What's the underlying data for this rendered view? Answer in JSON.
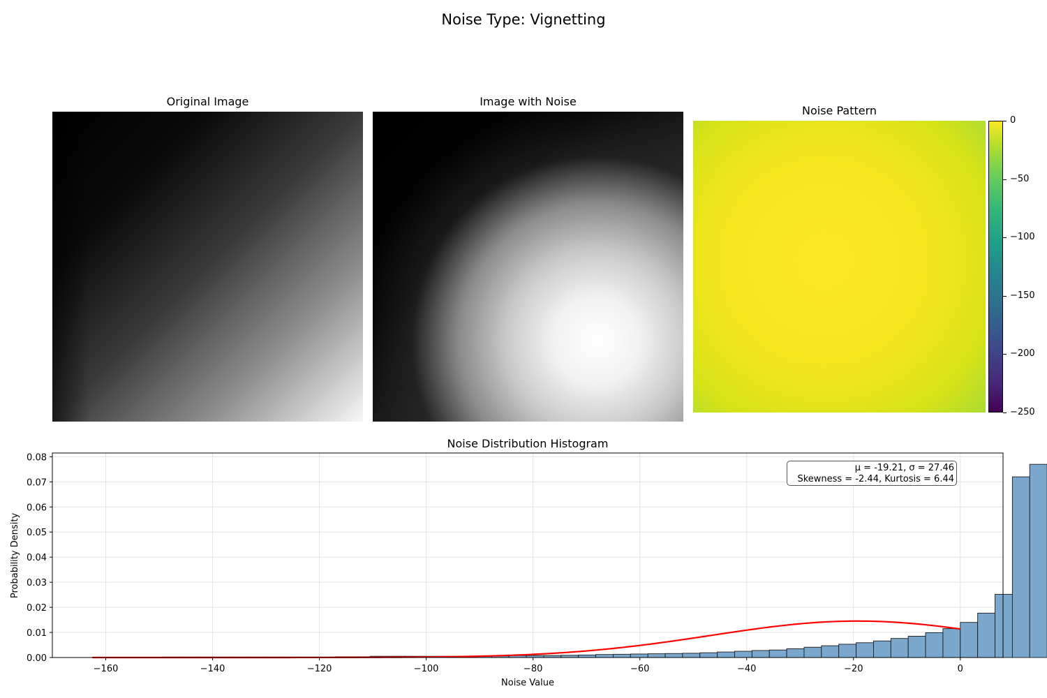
{
  "figure": {
    "title": "Noise Type: Vignetting"
  },
  "panels": {
    "original": {
      "title": "Original Image"
    },
    "noisy": {
      "title": "Image with Noise"
    },
    "pattern": {
      "title": "Noise Pattern",
      "colormap": "viridis",
      "colorbar_ticks": [
        "0",
        "−50",
        "−100",
        "−150",
        "−200",
        "−250"
      ],
      "colorbar_range": [
        -250,
        0
      ]
    }
  },
  "stats": {
    "line1": "μ = -19.21, σ = 27.46",
    "line2": "Skewness = -2.44, Kurtosis = 6.44"
  },
  "chart_data": {
    "type": "bar",
    "title": "Noise Distribution Histogram",
    "xlabel": "Noise Value",
    "ylabel": "Probability Density",
    "xlim": [
      -170,
      8
    ],
    "ylim": [
      0,
      0.0815
    ],
    "grid": true,
    "xticks": [
      -160,
      -140,
      -120,
      -100,
      -80,
      -60,
      -40,
      -20,
      0
    ],
    "xtick_labels": [
      "−160",
      "−140",
      "−120",
      "−100",
      "−80",
      "−60",
      "−40",
      "−20",
      "0"
    ],
    "yticks": [
      0,
      0.01,
      0.02,
      0.03,
      0.04,
      0.05,
      0.06,
      0.07,
      0.08
    ],
    "ytick_labels": [
      "0.00",
      "0.01",
      "0.02",
      "0.03",
      "0.04",
      "0.05",
      "0.06",
      "0.07",
      "0.08"
    ],
    "bin_width": 3.25,
    "bin_start": -162.5,
    "values": [
      0.0001,
      0.0001,
      0.0001,
      0.0001,
      0.0002,
      0.0002,
      0.0002,
      0.0002,
      0.0002,
      0.0002,
      0.0002,
      0.0002,
      0.0002,
      0.0002,
      0.0003,
      0.0003,
      0.0005,
      0.0005,
      0.0005,
      0.0005,
      0.0005,
      0.0005,
      0.0005,
      0.0006,
      0.0008,
      0.0008,
      0.0008,
      0.0009,
      0.001,
      0.0012,
      0.0013,
      0.0014,
      0.0015,
      0.0016,
      0.0017,
      0.0019,
      0.0022,
      0.0025,
      0.0028,
      0.003,
      0.0035,
      0.0041,
      0.0047,
      0.0053,
      0.0059,
      0.0066,
      0.0076,
      0.0085,
      0.0099,
      0.0115,
      0.014,
      0.0177,
      0.0252,
      0.072,
      0.077
    ],
    "bar_color": "#7ba7cc",
    "fit": {
      "type": "normal",
      "mean": -19.21,
      "std": 27.46,
      "x_range": [
        -162.5,
        0
      ],
      "color": "#ff0000"
    }
  }
}
